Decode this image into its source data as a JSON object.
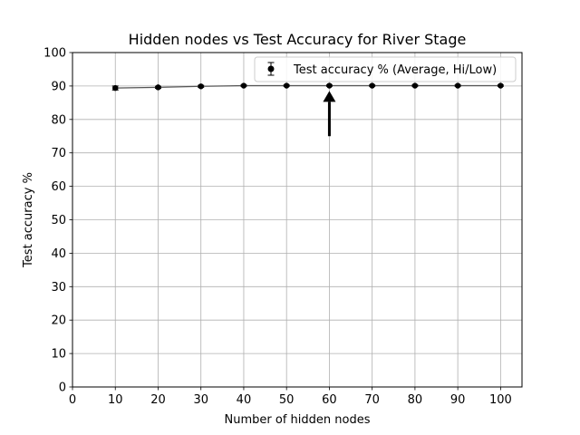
{
  "chart_data": {
    "type": "line",
    "title": "Hidden nodes vs Test Accuracy for River Stage",
    "xlabel": "Number of hidden nodes",
    "ylabel": "Test accuracy %",
    "xlim": [
      0,
      105
    ],
    "ylim": [
      0,
      100
    ],
    "xticks": [
      0,
      10,
      20,
      30,
      40,
      50,
      60,
      70,
      80,
      90,
      100
    ],
    "yticks": [
      0,
      10,
      20,
      30,
      40,
      50,
      60,
      70,
      80,
      90,
      100
    ],
    "grid": true,
    "legend_position": "top-right",
    "series": [
      {
        "name": "Test accuracy % (Average, Hi/Low)",
        "color": "#000000",
        "line_color": "#555555",
        "x": [
          10,
          20,
          30,
          40,
          50,
          60,
          70,
          80,
          90,
          100
        ],
        "y": [
          89.4,
          89.6,
          89.9,
          90.1,
          90.1,
          90.1,
          90.1,
          90.1,
          90.1,
          90.1
        ],
        "y_low": [
          88.8,
          89.3,
          89.6,
          89.9,
          89.9,
          89.9,
          89.9,
          89.9,
          89.9,
          89.9
        ],
        "y_high": [
          90.0,
          89.9,
          90.2,
          90.3,
          90.3,
          90.3,
          90.3,
          90.3,
          90.3,
          90.3
        ]
      }
    ],
    "annotations": [
      {
        "type": "arrow",
        "x": 60,
        "y_from": 75,
        "y_to": 88.5
      }
    ]
  }
}
